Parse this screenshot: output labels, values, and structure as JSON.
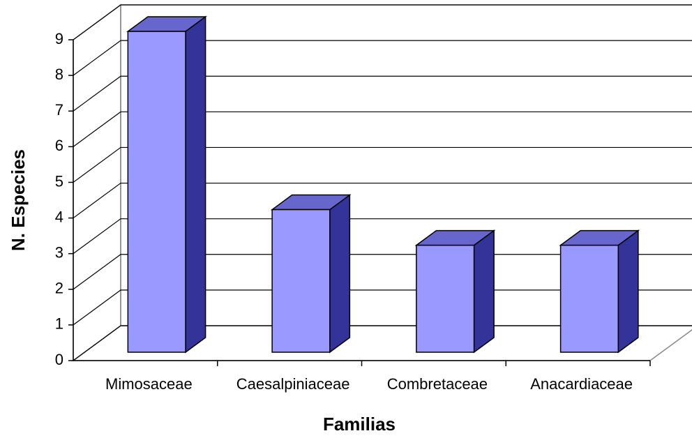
{
  "chart_data": {
    "type": "bar3d",
    "categories": [
      "Mimosaceae",
      "Caesalpiniaceae",
      "Combretaceae",
      "Anacardiaceae"
    ],
    "values": [
      9,
      4,
      3,
      3
    ],
    "colors": {
      "front": "#9999ff",
      "side": "#333399",
      "top": "#6666cc"
    },
    "xlabel": "Familias",
    "ylabel": "N. Especies",
    "ylim": [
      0,
      9
    ],
    "yticks": [
      0,
      1,
      2,
      3,
      4,
      5,
      6,
      7,
      8,
      9
    ],
    "grid": true
  }
}
